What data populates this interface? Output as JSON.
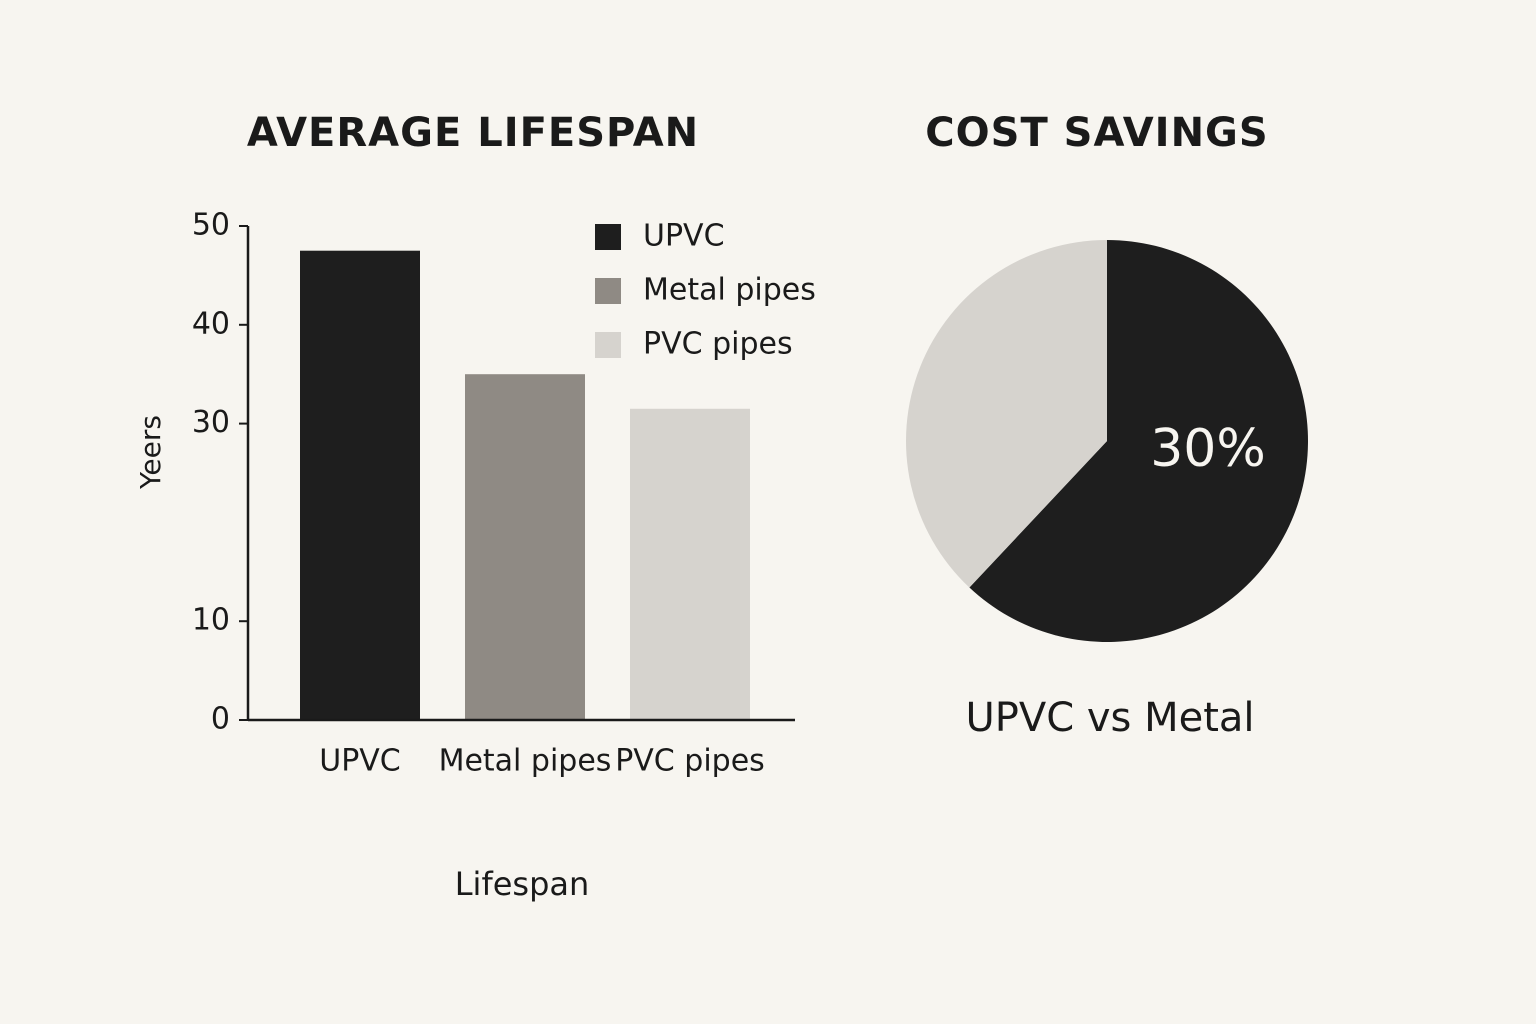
{
  "chart_data": [
    {
      "type": "bar",
      "title": "AVERAGE LIFESPAN",
      "x_label": "Lifespan",
      "y_label": "Yeers",
      "categories": [
        "UPVC",
        "Metal pipes",
        "PVC pipes"
      ],
      "series": [
        {
          "name": "UPVC",
          "color": "#1e1e1e",
          "values": [
            47.5,
            null,
            null
          ]
        },
        {
          "name": "Metal pipes",
          "color": "#8f8a84",
          "values": [
            null,
            35,
            null
          ]
        },
        {
          "name": "PVC pipes",
          "color": "#d6d3ce",
          "values": [
            null,
            null,
            31.5
          ]
        }
      ],
      "ylim": [
        0,
        50
      ],
      "yticks": [
        0,
        10,
        30,
        40,
        50
      ],
      "legend": "upper right"
    },
    {
      "type": "pie",
      "title": "COST SAVINGS",
      "subtitle": "UPVC vs Metal",
      "annotation": "30%",
      "values": [
        62,
        38
      ],
      "colors": [
        "#1e1e1e",
        "#d6d3ce"
      ]
    }
  ]
}
